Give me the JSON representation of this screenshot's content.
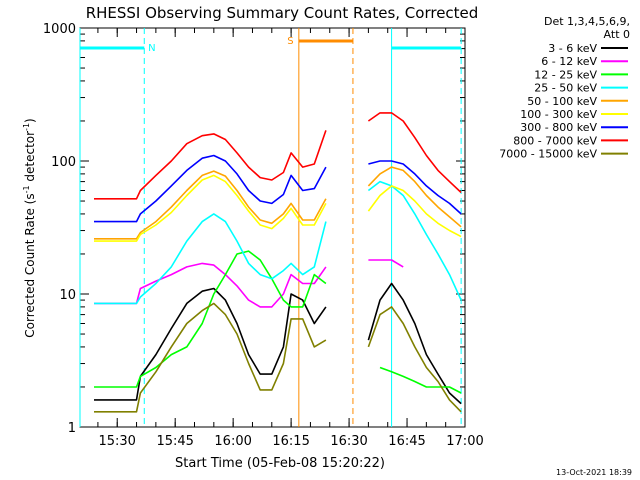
{
  "chart_data": {
    "type": "line",
    "title": "RHESSI Observing Summary Count Rates, Corrected",
    "xlabel": "Start Time (05-Feb-08 15:20:22)",
    "ylabel": "Corrected Count Rate (s",
    "ylabel_sup1": "-1",
    "ylabel_mid": " detector",
    "ylabel_sup2": "-1",
    "ylabel_end": ")",
    "x_tick_labels": [
      "15:30",
      "15:45",
      "16:00",
      "16:15",
      "16:30",
      "16:45",
      "17:00"
    ],
    "y_tick_labels": [
      "1",
      "10",
      "100",
      "1000"
    ],
    "y_scale": "log",
    "ylim": [
      1,
      1000
    ],
    "xlim": [
      "15:20:22",
      "17:00"
    ],
    "legend_header": [
      "Det 1,3,4,5,6,9,",
      "Att 0"
    ],
    "legend_placement": "right",
    "footer_timestamp": "13-Oct-2021 18:39",
    "flag_labels": [
      "N",
      "S"
    ],
    "x": [
      "15:24",
      "15:28",
      "15:32",
      "15:35",
      "15:36",
      "15:40",
      "15:44",
      "15:48",
      "15:52",
      "15:55",
      "15:58",
      "16:01",
      "16:04",
      "16:07",
      "16:10",
      "16:13",
      "16:15",
      "16:18",
      "16:21",
      "16:24",
      "16:26",
      "16:35",
      "16:38",
      "16:41",
      "16:44",
      "16:47",
      "16:50",
      "16:53",
      "16:56",
      "16:59"
    ],
    "series": [
      {
        "name": "3 - 6 keV",
        "color": "#000000",
        "values": [
          1.6,
          1.6,
          1.6,
          1.6,
          2.4,
          3.5,
          5.5,
          8.5,
          10.5,
          11,
          9,
          6,
          3.5,
          2.5,
          2.5,
          4,
          10,
          9,
          6,
          8,
          null,
          4.5,
          9,
          12,
          9,
          6,
          3.5,
          2.5,
          1.8,
          1.5
        ]
      },
      {
        "name": "6 - 12 keV",
        "color": "#ff00ff",
        "values": [
          8.5,
          8.5,
          8.5,
          8.5,
          11,
          12.5,
          14,
          16,
          17,
          16.5,
          14,
          11.5,
          9,
          8,
          8,
          10,
          14,
          12,
          12,
          16,
          null,
          18,
          18,
          18,
          16,
          null,
          null,
          null,
          null,
          null
        ]
      },
      {
        "name": "12 - 25 keV",
        "color": "#00ff00",
        "values": [
          2,
          2,
          2,
          2,
          2.4,
          2.8,
          3.5,
          4,
          6,
          10,
          14,
          20,
          21,
          18,
          13,
          9,
          8,
          8,
          14,
          12,
          null,
          null,
          2.8,
          2.6,
          2.4,
          2.2,
          2,
          2,
          2,
          1.8
        ]
      },
      {
        "name": "25 - 50 keV",
        "color": "#00ffff",
        "values": [
          8.5,
          8.5,
          8.5,
          8.5,
          9.5,
          12,
          16,
          25,
          35,
          40,
          35,
          25,
          17,
          14,
          13,
          15,
          17,
          14,
          16,
          35,
          null,
          60,
          70,
          65,
          55,
          40,
          28,
          20,
          14,
          9
        ]
      },
      {
        "name": "50 - 100 keV",
        "color": "#ffa500",
        "values": [
          26,
          26,
          26,
          26,
          29,
          35,
          45,
          60,
          78,
          84,
          77,
          60,
          45,
          36,
          34,
          40,
          48,
          36,
          36,
          52,
          null,
          65,
          80,
          90,
          85,
          70,
          55,
          45,
          38,
          32
        ]
      },
      {
        "name": "100 - 300 keV",
        "color": "#ffff00",
        "values": [
          25,
          25,
          25,
          25,
          28,
          33,
          41,
          55,
          72,
          78,
          70,
          55,
          42,
          33,
          31,
          37,
          44,
          33,
          33,
          48,
          null,
          42,
          55,
          65,
          60,
          50,
          40,
          34,
          30,
          27
        ]
      },
      {
        "name": "300 - 800 keV",
        "color": "#0000ff",
        "values": [
          35,
          35,
          35,
          35,
          40,
          50,
          65,
          85,
          105,
          110,
          100,
          80,
          60,
          50,
          48,
          56,
          78,
          60,
          62,
          90,
          null,
          95,
          100,
          100,
          95,
          80,
          65,
          55,
          48,
          40
        ]
      },
      {
        "name": "800 - 7000 keV",
        "color": "#ff0000",
        "values": [
          52,
          52,
          52,
          52,
          60,
          78,
          100,
          135,
          155,
          160,
          145,
          115,
          90,
          75,
          72,
          82,
          115,
          90,
          95,
          170,
          null,
          200,
          230,
          230,
          200,
          150,
          110,
          85,
          70,
          58
        ]
      },
      {
        "name": "7000 - 15000 keV",
        "color": "#808000",
        "values": [
          1.3,
          1.3,
          1.3,
          1.3,
          1.8,
          2.6,
          4,
          6,
          7.5,
          8.5,
          7,
          5,
          3,
          1.9,
          1.9,
          3,
          6.5,
          6.5,
          4,
          4.5,
          null,
          4,
          7,
          8,
          6,
          4,
          2.8,
          2.2,
          1.6,
          1.3
        ]
      }
    ]
  }
}
